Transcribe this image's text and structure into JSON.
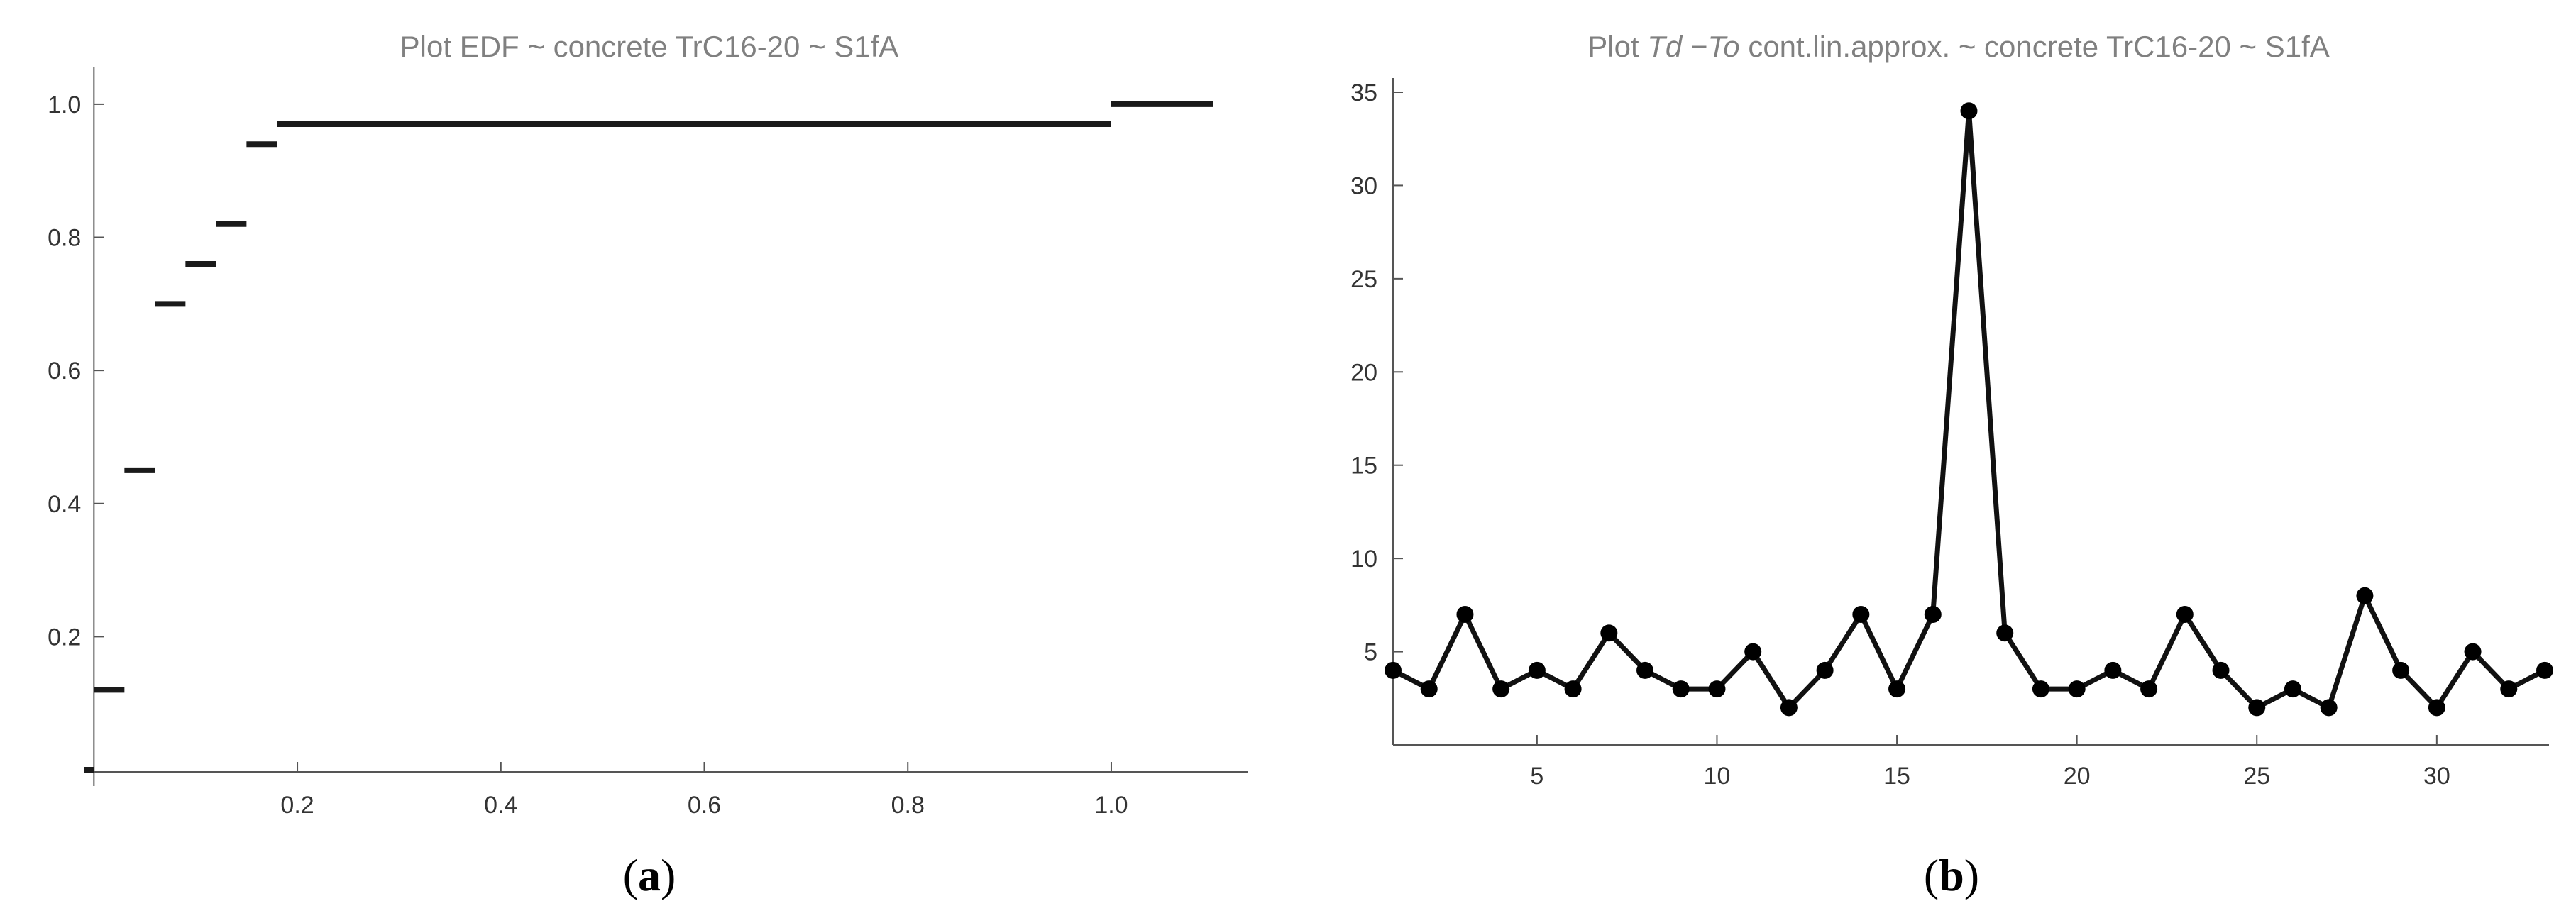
{
  "panels": [
    {
      "label_text": "a",
      "title_plain": "Plot EDF ~ concrete TrC16-20 ~ S1fA",
      "chart_data": {
        "type": "line",
        "title": "Plot EDF ~ concrete TrC16-20 ~ S1fA",
        "xlabel": "",
        "ylabel": "",
        "xlim": [
          -0.01,
          1.12
        ],
        "ylim": [
          0,
          1.05
        ],
        "x_ticks": [
          0.2,
          0.4,
          0.6,
          0.8,
          1.0
        ],
        "x_tick_labels": [
          "0.2",
          "0.4",
          "0.6",
          "0.8",
          "1.0"
        ],
        "y_ticks": [
          0.2,
          0.4,
          0.6,
          0.8,
          1.0
        ],
        "y_tick_labels": [
          "0.2",
          "0.4",
          "0.6",
          "0.8",
          "1.0"
        ],
        "grid": false,
        "series": [
          {
            "style": "step",
            "steps": [
              {
                "x0": -0.01,
                "x1": 0.0,
                "y": 0.0
              },
              {
                "x0": 0.0,
                "x1": 0.03,
                "y": 0.12
              },
              {
                "x0": 0.03,
                "x1": 0.06,
                "y": 0.45
              },
              {
                "x0": 0.06,
                "x1": 0.09,
                "y": 0.7
              },
              {
                "x0": 0.09,
                "x1": 0.12,
                "y": 0.76
              },
              {
                "x0": 0.12,
                "x1": 0.15,
                "y": 0.82
              },
              {
                "x0": 0.15,
                "x1": 0.18,
                "y": 0.94
              },
              {
                "x0": 0.18,
                "x1": 1.0,
                "y": 0.97
              },
              {
                "x0": 1.0,
                "x1": 1.1,
                "y": 1.0
              }
            ]
          }
        ]
      }
    },
    {
      "label_text": "b",
      "title_pre": "Plot ",
      "title_italic1": "Td",
      "title_mid": " −",
      "title_italic2": "To",
      "title_post": " cont.lin.approx. ~ concrete TrC16-20 ~ S1fA",
      "chart_data": {
        "type": "line",
        "title": "Plot Td −To cont.lin.approx. ~ concrete TrC16-20 ~ S1fA",
        "xlabel": "",
        "ylabel": "",
        "xlim": [
          1,
          33
        ],
        "ylim": [
          0,
          35
        ],
        "x_ticks": [
          5,
          10,
          15,
          20,
          25,
          30
        ],
        "x_tick_labels": [
          "5",
          "10",
          "15",
          "20",
          "25",
          "30"
        ],
        "y_ticks": [
          5,
          10,
          15,
          20,
          25,
          30,
          35
        ],
        "y_tick_labels": [
          "5",
          "10",
          "15",
          "20",
          "25",
          "30",
          "35"
        ],
        "grid": false,
        "series": [
          {
            "style": "line-markers",
            "x": [
              1,
              2,
              3,
              4,
              5,
              6,
              7,
              8,
              9,
              10,
              11,
              12,
              13,
              14,
              15,
              16,
              17,
              18,
              19,
              20,
              21,
              22,
              23,
              24,
              25,
              26,
              27,
              28,
              29,
              30,
              31,
              32,
              33
            ],
            "y": [
              4,
              3,
              7,
              3,
              4,
              3,
              6,
              4,
              3,
              3,
              5,
              2,
              4,
              7,
              3,
              7,
              34,
              6,
              3,
              3,
              4,
              3,
              7,
              4,
              2,
              3,
              2,
              8,
              4,
              2,
              5,
              3,
              4
            ]
          }
        ]
      }
    }
  ]
}
